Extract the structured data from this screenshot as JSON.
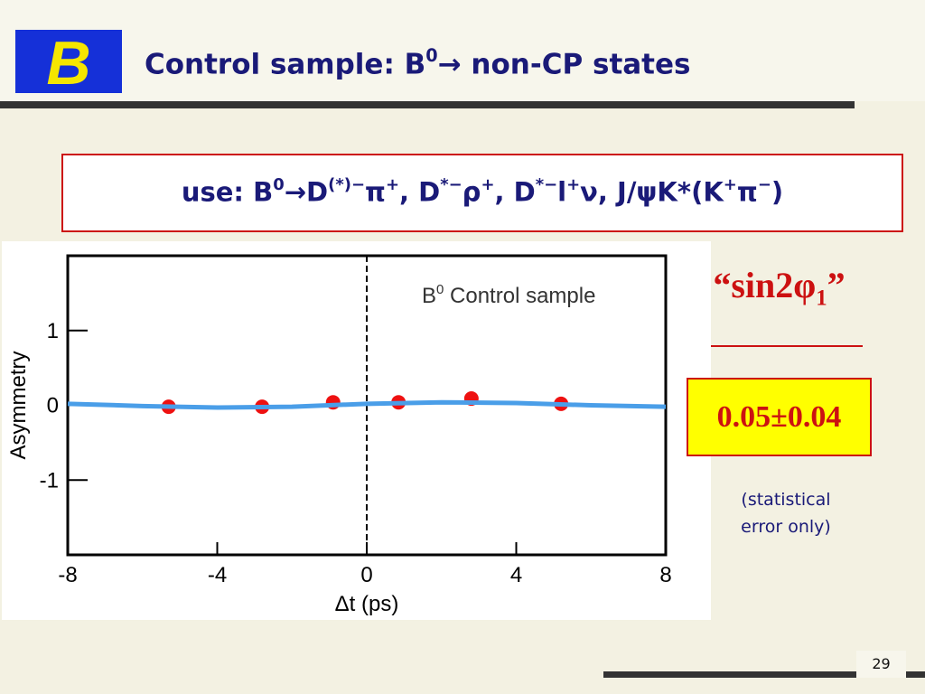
{
  "title": [
    {
      "text": "Control sample: B"
    },
    {
      "text": "0",
      "sup": true
    },
    {
      "text": "→ non-CP states"
    }
  ],
  "modes": [
    {
      "text": "use: B"
    },
    {
      "text": "0",
      "sup": true
    },
    {
      "text": "→D"
    },
    {
      "text": "(*)−",
      "sup": true
    },
    {
      "text": "π"
    },
    {
      "text": "+",
      "sup": true
    },
    {
      "text": ", D"
    },
    {
      "text": "*−",
      "sup": true
    },
    {
      "text": "ρ"
    },
    {
      "text": "+",
      "sup": true
    },
    {
      "text": ", D"
    },
    {
      "text": "*−",
      "sup": true
    },
    {
      "text": "l"
    },
    {
      "text": "+",
      "sup": true
    },
    {
      "text": "ν, J/ψK*(K"
    },
    {
      "text": "+",
      "sup": true
    },
    {
      "text": "π"
    },
    {
      "text": "−",
      "sup": true
    },
    {
      "text": ")"
    }
  ],
  "result_label": [
    {
      "text": "“sin2φ"
    },
    {
      "text": "1",
      "sub": true
    },
    {
      "text": "”"
    }
  ],
  "result_value": "0.05±0.04",
  "result_note": [
    "(statistical",
    "error only)"
  ],
  "page_number": "29",
  "chart_data": {
    "type": "scatter",
    "annotation": [
      {
        "text": "B"
      },
      {
        "text": "0",
        "sup": true
      },
      {
        "text": " Control sample"
      }
    ],
    "xlabel": "Δt (ps)",
    "ylabel": "Asymmetry",
    "xlim": [
      -8,
      8
    ],
    "ylim": [
      -2,
      2
    ],
    "xticks": [
      -8,
      -4,
      0,
      4,
      8
    ],
    "yticks": [
      -1,
      0,
      1
    ],
    "series": [
      {
        "color": "#ee1111",
        "x": [
          -5.3,
          -2.8,
          -0.9,
          0.85,
          2.8,
          5.2
        ],
        "values": [
          -0.02,
          -0.02,
          0.04,
          0.04,
          0.09,
          0.02
        ]
      },
      {
        "type": "line",
        "color": "#4a9ee8",
        "x": [
          -8,
          -6,
          -4,
          -2,
          0,
          2,
          4,
          6,
          8
        ],
        "values": [
          0.02,
          -0.01,
          -0.03,
          -0.02,
          0.02,
          0.04,
          0.03,
          0.0,
          -0.02
        ]
      }
    ]
  }
}
